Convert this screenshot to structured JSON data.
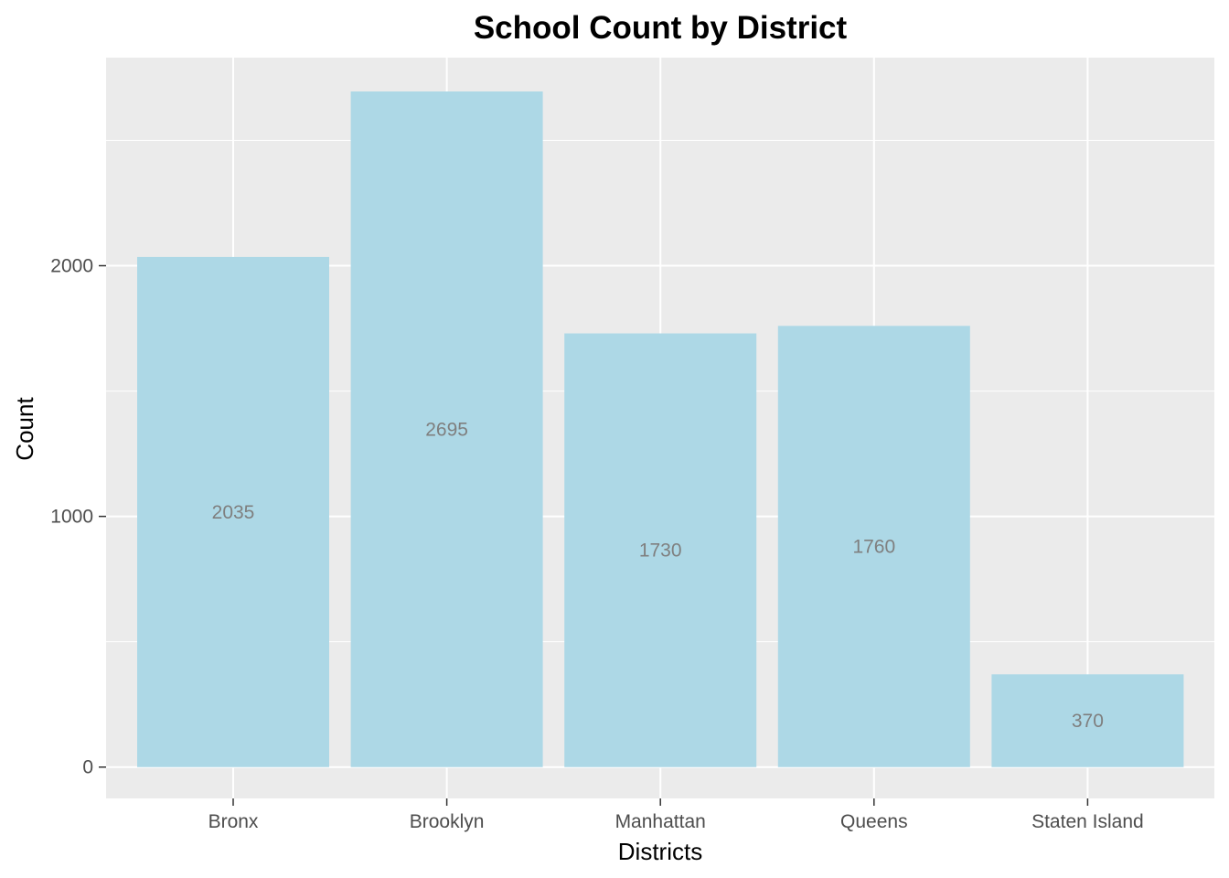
{
  "chart_data": {
    "type": "bar",
    "title": "School Count by District",
    "xlabel": "Districts",
    "ylabel": "Count",
    "categories": [
      "Bronx",
      "Brooklyn",
      "Manhattan",
      "Queens",
      "Staten Island"
    ],
    "values": [
      2035,
      2695,
      1730,
      1760,
      370
    ],
    "data_labels": [
      "2035",
      "2695",
      "1730",
      "1760",
      "370"
    ],
    "yticks": [
      0,
      1000,
      2000
    ],
    "ytick_labels": [
      "0",
      "1000",
      "2000"
    ],
    "ylim": [
      -125,
      2830
    ],
    "grid": true,
    "legend": "none",
    "colors": {
      "bar": "#add8e6",
      "panel": "#ebebeb",
      "gridline": "#ffffff",
      "data_label": "#7f7f7f",
      "tick_label": "#4d4d4d",
      "tick_mark": "#333333"
    }
  }
}
